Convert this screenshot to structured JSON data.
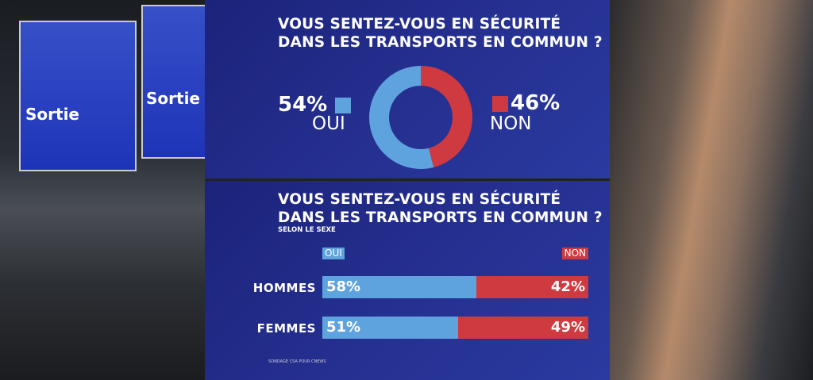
{
  "background": {
    "left_sign_1": "Sortie",
    "left_sign_2": "Sortie"
  },
  "colors": {
    "oui": "#5ea3dd",
    "non": "#cf3a40",
    "panel": "#1f2a85"
  },
  "chart_data": [
    {
      "type": "pie",
      "donut": true,
      "title": "VOUS SENTEZ-VOUS EN SÉCURITÉ DANS LES TRANSPORTS EN COMMUN ?",
      "title_lines": [
        "VOUS SENTEZ-VOUS EN SÉCURITÉ",
        "DANS LES TRANSPORTS EN COMMUN ?"
      ],
      "categories": [
        "OUI",
        "NON"
      ],
      "values": [
        54,
        46
      ],
      "value_labels": [
        "54%",
        "46%"
      ],
      "colors": [
        "#5ea3dd",
        "#cf3a40"
      ]
    },
    {
      "type": "bar",
      "orientation": "horizontal",
      "stacked": true,
      "title_lines": [
        "VOUS SENTEZ-VOUS EN SÉCURITÉ",
        "DANS LES TRANSPORTS EN COMMUN ?"
      ],
      "subtitle": "SELON LE SEXE",
      "categories": [
        "HOMMES",
        "FEMMES"
      ],
      "series": [
        {
          "name": "OUI",
          "values": [
            58,
            51
          ],
          "labels": [
            "58%",
            "51%"
          ],
          "color": "#5ea3dd"
        },
        {
          "name": "NON",
          "values": [
            42,
            49
          ],
          "labels": [
            "42%",
            "49%"
          ],
          "color": "#cf3a40"
        }
      ],
      "xlim": [
        0,
        100
      ],
      "source": "SONDAGE CSA POUR CNEWS"
    }
  ]
}
